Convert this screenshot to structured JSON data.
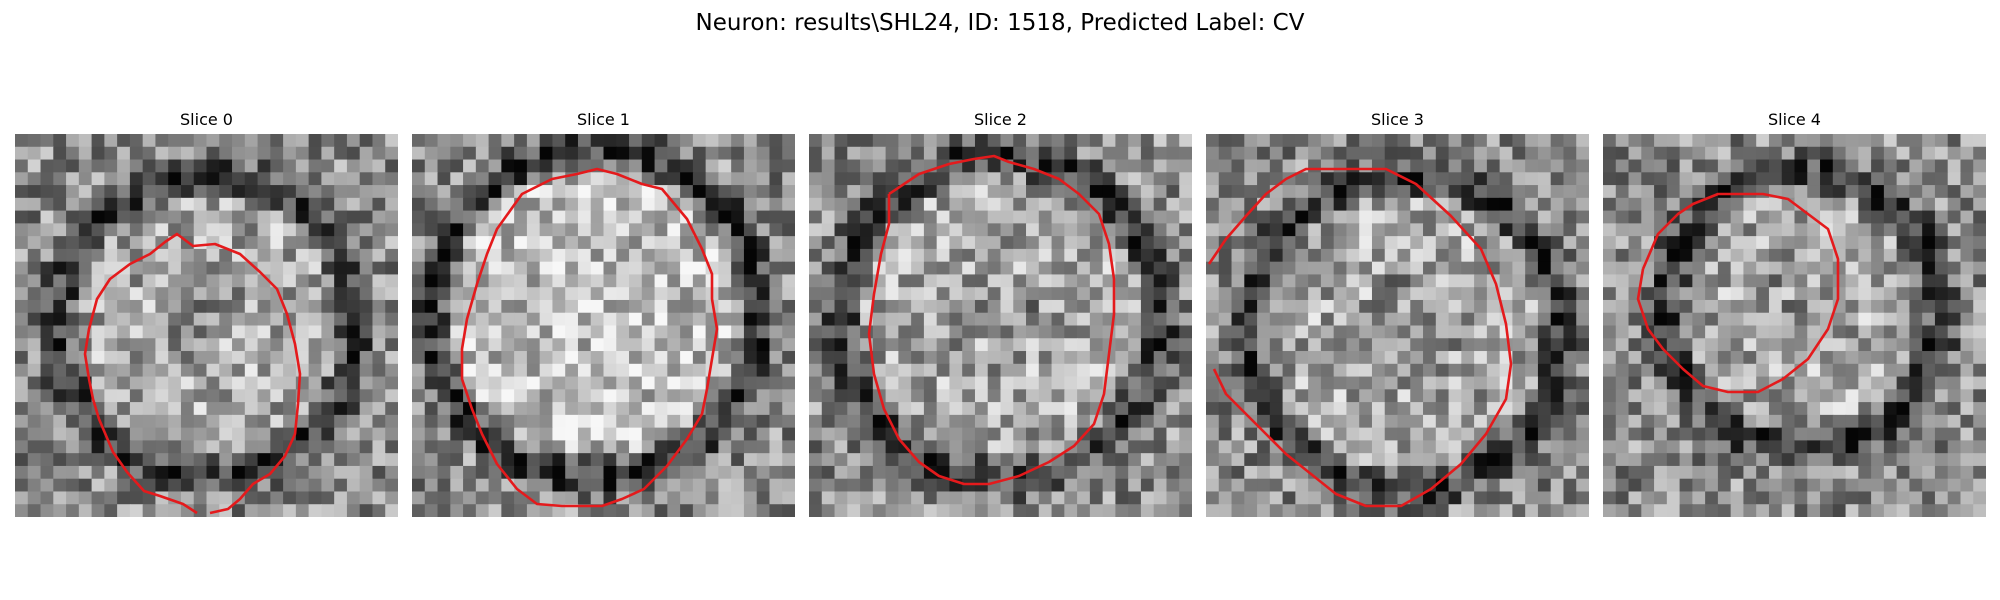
{
  "figure": {
    "title": "Neuron: results\\SHL24, ID: 1518, Predicted Label: CV"
  },
  "colors": {
    "contour": "#e41a1c",
    "background": "#ffffff"
  },
  "panels": [
    {
      "title": "Slice 0"
    },
    {
      "title": "Slice 1"
    },
    {
      "title": "Slice 2"
    },
    {
      "title": "Slice 3"
    },
    {
      "title": "Slice 4"
    }
  ]
}
